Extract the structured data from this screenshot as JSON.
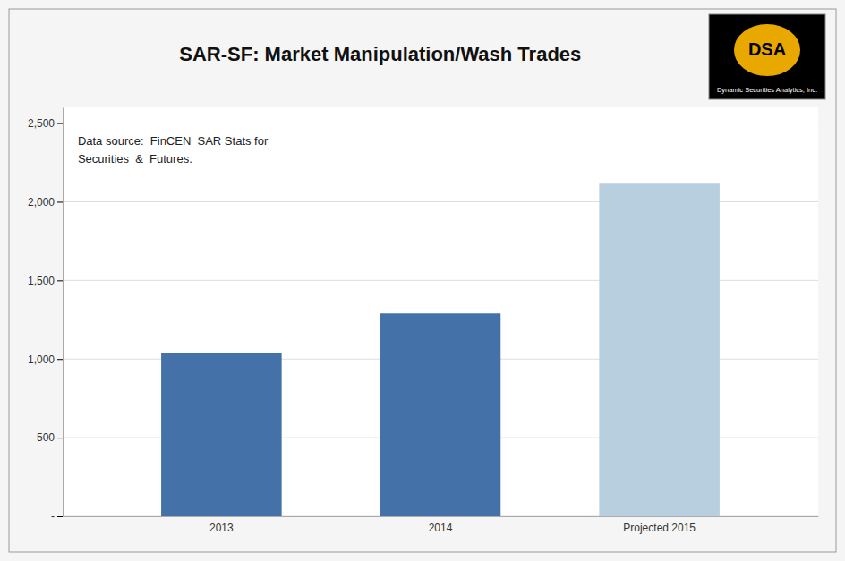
{
  "chart_data": {
    "type": "bar",
    "title": "SAR-SF: Market Manipulation/Wash Trades",
    "categories": [
      "2013",
      "2014",
      "Projected 2015"
    ],
    "values": [
      1040,
      1290,
      2115
    ],
    "colors": [
      "#4472a8",
      "#4472a8",
      "#b8cfe0"
    ],
    "ylim": [
      0,
      2600
    ],
    "yticks": [
      {
        "value": 0,
        "label": "-"
      },
      500,
      {
        "value": 1000,
        "label": "1,000"
      },
      {
        "value": 1500,
        "label": "1,500"
      },
      {
        "value": 2000,
        "label": "2,000"
      },
      {
        "value": 2500,
        "label": "2,500"
      }
    ],
    "grid": true,
    "annotations": [
      "Data source:  FinCEN  SAR Stats for",
      "Securities  &  Futures.",
      "DSA",
      "Dynamic Securities Analytics, Inc."
    ]
  }
}
